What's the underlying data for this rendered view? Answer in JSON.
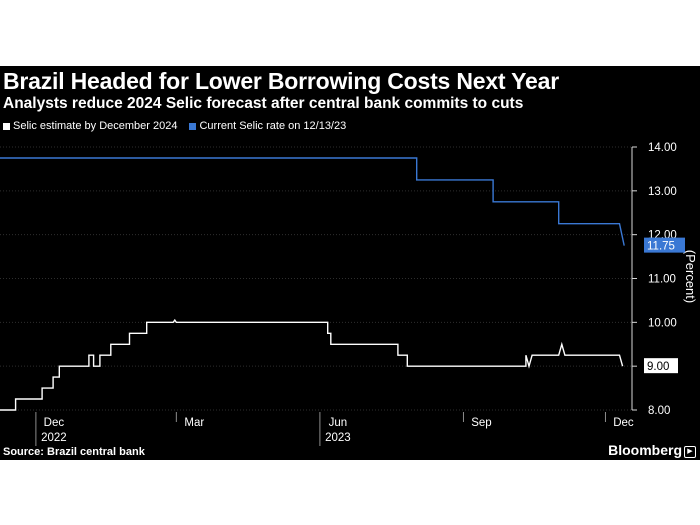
{
  "chart_data": {
    "type": "line",
    "title": "Brazil Headed for Lower Borrowing Costs Next Year",
    "subtitle": "Analysts reduce 2024 Selic forecast after central bank commits to cuts",
    "ylabel": "(Percent)",
    "ylim": [
      8.0,
      14.0
    ],
    "yticks": [
      "8.00",
      "9.00",
      "10.00",
      "11.00",
      "12.00",
      "13.00",
      "14.00"
    ],
    "x_ticks": [
      {
        "date": "2022-12-01",
        "label": "Dec",
        "year": "2022"
      },
      {
        "date": "2023-03-01",
        "label": "Mar",
        "year": ""
      },
      {
        "date": "2023-06-01",
        "label": "Jun",
        "year": "2023"
      },
      {
        "date": "2023-09-01",
        "label": "Sep",
        "year": ""
      },
      {
        "date": "2023-12-01",
        "label": "Dec",
        "year": ""
      }
    ],
    "xlim": [
      "2022-11-08",
      "2023-12-18"
    ],
    "series": [
      {
        "name": "Selic estimate by December 2024",
        "color": "#ffffff",
        "end_label": "9.00",
        "points": [
          [
            "2022-11-08",
            8.0
          ],
          [
            "2022-11-18",
            8.0
          ],
          [
            "2022-11-18",
            8.25
          ],
          [
            "2022-11-25",
            8.25
          ],
          [
            "2022-11-25",
            8.25
          ],
          [
            "2022-12-05",
            8.25
          ],
          [
            "2022-12-05",
            8.5
          ],
          [
            "2022-12-12",
            8.5
          ],
          [
            "2022-12-12",
            8.75
          ],
          [
            "2022-12-16",
            8.75
          ],
          [
            "2022-12-16",
            9.0
          ],
          [
            "2023-01-04",
            9.0
          ],
          [
            "2023-01-04",
            9.25
          ],
          [
            "2023-01-07",
            9.25
          ],
          [
            "2023-01-07",
            9.0
          ],
          [
            "2023-01-11",
            9.0
          ],
          [
            "2023-01-11",
            9.25
          ],
          [
            "2023-01-18",
            9.25
          ],
          [
            "2023-01-18",
            9.5
          ],
          [
            "2023-01-26",
            9.5
          ],
          [
            "2023-01-26",
            9.5
          ],
          [
            "2023-01-30",
            9.5
          ],
          [
            "2023-01-30",
            9.75
          ],
          [
            "2023-02-10",
            9.75
          ],
          [
            "2023-02-10",
            10.0
          ],
          [
            "2023-02-27",
            10.0
          ],
          [
            "2023-02-28",
            10.05
          ],
          [
            "2023-03-01",
            10.0
          ],
          [
            "2023-05-31",
            10.0
          ],
          [
            "2023-06-06",
            10.0
          ],
          [
            "2023-06-06",
            9.75
          ],
          [
            "2023-06-08",
            9.75
          ],
          [
            "2023-06-08",
            9.5
          ],
          [
            "2023-07-21",
            9.5
          ],
          [
            "2023-07-21",
            9.25
          ],
          [
            "2023-07-27",
            9.25
          ],
          [
            "2023-07-27",
            9.0
          ],
          [
            "2023-10-11",
            9.0
          ],
          [
            "2023-10-11",
            9.25
          ],
          [
            "2023-10-13",
            9.0
          ],
          [
            "2023-10-15",
            9.25
          ],
          [
            "2023-10-20",
            9.25
          ],
          [
            "2023-10-20",
            9.25
          ],
          [
            "2023-11-01",
            9.25
          ],
          [
            "2023-11-03",
            9.5
          ],
          [
            "2023-11-05",
            9.25
          ],
          [
            "2023-12-10",
            9.25
          ],
          [
            "2023-12-12",
            9.0
          ]
        ]
      },
      {
        "name": "Current Selic rate on 12/13/23",
        "color": "#3a78d4",
        "end_label": "11.75",
        "points": [
          [
            "2022-11-08",
            13.75
          ],
          [
            "2023-07-26",
            13.75
          ],
          [
            "2023-08-02",
            13.75
          ],
          [
            "2023-08-02",
            13.25
          ],
          [
            "2023-09-14",
            13.25
          ],
          [
            "2023-09-20",
            13.25
          ],
          [
            "2023-09-20",
            12.75
          ],
          [
            "2023-10-28",
            12.75
          ],
          [
            "2023-11-01",
            12.75
          ],
          [
            "2023-11-01",
            12.25
          ],
          [
            "2023-12-10",
            12.25
          ],
          [
            "2023-12-13",
            11.75
          ]
        ]
      }
    ],
    "source": "Source: Brazil central bank",
    "brand": "Bloomberg"
  }
}
